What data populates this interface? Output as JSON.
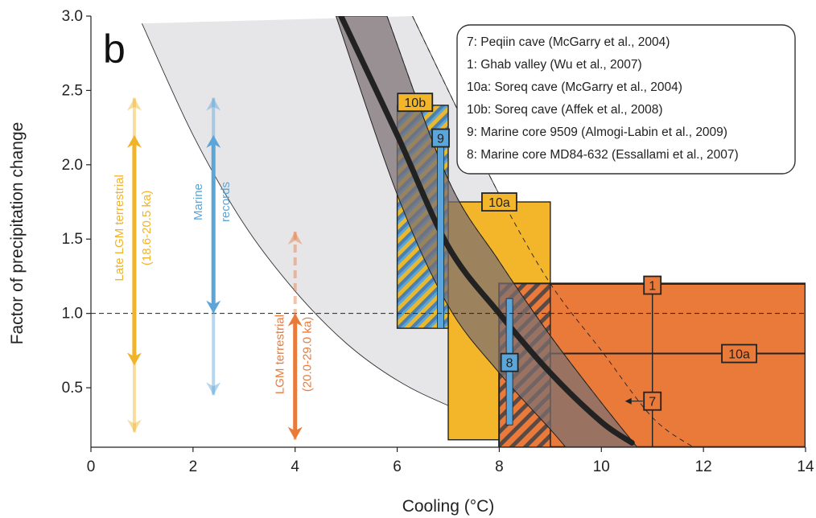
{
  "chart_data": {
    "type": "area",
    "panel_label": "b",
    "xlabel": "Cooling (°C)",
    "ylabel": "Factor of precipitation change",
    "xlim": [
      0,
      14
    ],
    "ylim": [
      0.1,
      3.0
    ],
    "xticks": [
      "0",
      "2",
      "4",
      "6",
      "8",
      "10",
      "12",
      "14"
    ],
    "yticks": [
      "0.5",
      "1.0",
      "1.5",
      "2.0",
      "2.5",
      "3.0"
    ],
    "reference_line": {
      "y": 1.0,
      "style": "dashed"
    },
    "legend": [
      "7: Peqiin cave (McGarry et al., 2004)",
      "1: Ghab valley (Wu et al., 2007)",
      "10a: Soreq cave (McGarry et al., 2004)",
      "10b: Soreq cave (Affek et al., 2008)",
      "9: Marine core 9509 (Almogi-Labin et al., 2009)",
      "8: Marine core MD84-632 (Essallami et al., 2007)"
    ],
    "colors": {
      "light_envelope": "#e6e6e8",
      "dark_envelope": "#7a6f72",
      "central_curve": "#222222",
      "terrestrial_orange": "#ea7a3a",
      "yellow": "#f3b52a",
      "marine_blue": "#5ba5d8",
      "lgm_yellow": "#f0b32a"
    },
    "central_curve": {
      "x": [
        4.9,
        6.0,
        7.0,
        8.0,
        9.0,
        10.0,
        10.6
      ],
      "y": [
        3.0,
        2.2,
        1.45,
        1.0,
        0.6,
        0.27,
        0.13
      ]
    },
    "light_envelope": {
      "upper": {
        "x": [
          6.3,
          7.0,
          8.0,
          9.0,
          10.0,
          11.0,
          11.8
        ],
        "y": [
          3.0,
          2.5,
          1.8,
          1.2,
          0.75,
          0.3,
          0.1
        ]
      },
      "lower": {
        "x": [
          1.0,
          2.0,
          3.0,
          4.0,
          5.0,
          6.0,
          7.0,
          8.0,
          9.0,
          9.6
        ],
        "y": [
          2.95,
          2.2,
          1.6,
          1.15,
          0.8,
          0.55,
          0.38,
          0.25,
          0.15,
          0.1
        ]
      }
    },
    "dark_envelope": {
      "upper": {
        "x": [
          5.8,
          7.0,
          8.0,
          9.0,
          10.0,
          10.7
        ],
        "y": [
          3.0,
          1.9,
          1.35,
          0.85,
          0.4,
          0.1
        ]
      },
      "lower": {
        "x": [
          4.8,
          6.0,
          7.0,
          8.0,
          9.0,
          9.3
        ],
        "y": [
          3.0,
          1.8,
          1.05,
          0.6,
          0.22,
          0.1
        ]
      }
    },
    "records": [
      {
        "id": "10a",
        "label": "10a",
        "kind": "box",
        "color": "#f3b52a",
        "x": [
          7.0,
          9.0
        ],
        "y": [
          0.15,
          1.75
        ],
        "label_at": [
          8.0,
          1.75
        ]
      },
      {
        "id": "1",
        "label": "1",
        "kind": "box",
        "color": "#ea7a3a",
        "x": [
          8.0,
          14.0
        ],
        "y": [
          0.1,
          1.2
        ],
        "label_at": [
          11.0,
          1.19
        ]
      },
      {
        "id": "10a-terr",
        "label": "10a",
        "kind": "box",
        "color": "#ea7a3a",
        "x": [
          9.0,
          14.0
        ],
        "y": [
          0.1,
          0.73
        ],
        "label_at": [
          12.7,
          0.73
        ]
      },
      {
        "id": "10b",
        "label": "10b",
        "kind": "hatched-box",
        "color": "#5ba5d8",
        "x": [
          6.0,
          7.0
        ],
        "y": [
          0.9,
          2.4
        ],
        "label_at": [
          6.35,
          2.42
        ]
      },
      {
        "id": "9",
        "label": "9",
        "kind": "bar",
        "color": "#5ba5d8",
        "x": [
          6.85
        ],
        "y": [
          0.9,
          2.2
        ],
        "label_at": [
          6.85,
          2.18
        ]
      },
      {
        "id": "8",
        "label": "8",
        "kind": "bar",
        "color": "#5ba5d8",
        "x": [
          8.2
        ],
        "y": [
          0.25,
          1.1
        ],
        "label_at": [
          8.2,
          0.67
        ]
      },
      {
        "id": "7",
        "label": "7",
        "kind": "range",
        "color": "#ea7a3a",
        "x": [
          11.0
        ],
        "y": [
          0.1,
          1.2
        ],
        "label_at": [
          11.0,
          0.41
        ]
      }
    ],
    "arrows": [
      {
        "label": "Late LGM terrestrial",
        "label2": "(18.6-20.5 ka)",
        "color": "#f0b32a",
        "x": 0.85,
        "y_solid": [
          0.65,
          2.2
        ],
        "y_faded": [
          0.2,
          2.45
        ]
      },
      {
        "label": "Marine",
        "label2": "records",
        "color": "#5ba5d8",
        "x": 2.4,
        "y_solid": [
          1.0,
          2.2
        ],
        "y_faded": [
          0.45,
          2.45
        ]
      },
      {
        "label": "LGM terrestrial",
        "label2": "(20.0-29.0 ka)",
        "color": "#ea7a3a",
        "x": 4.0,
        "y_solid": [
          0.15,
          1.0
        ],
        "y_faded": [
          0.15,
          1.55
        ]
      }
    ]
  }
}
